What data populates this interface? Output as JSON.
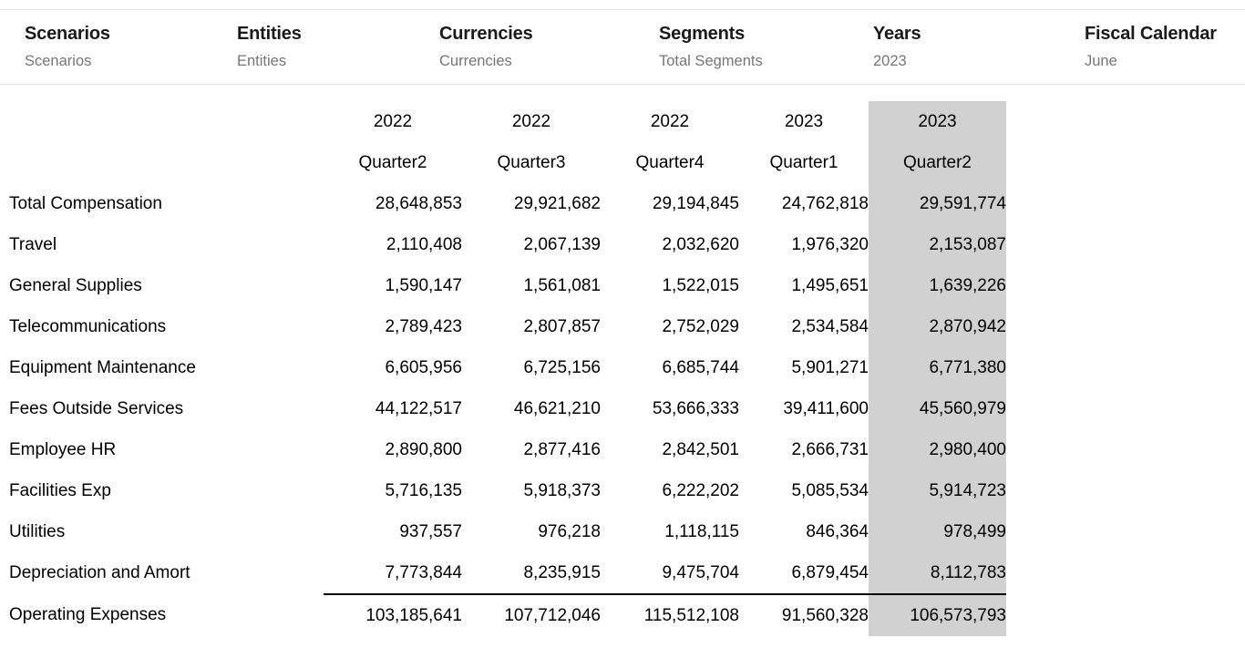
{
  "pov": {
    "items": [
      {
        "label": "Scenarios",
        "value": "Scenarios"
      },
      {
        "label": "Entities",
        "value": "Entities"
      },
      {
        "label": "Currencies",
        "value": "Currencies"
      },
      {
        "label": "Segments",
        "value": "Total Segments"
      },
      {
        "label": "Years",
        "value": "2023"
      },
      {
        "label": "Fiscal Calendar",
        "value": "June"
      }
    ]
  },
  "grid": {
    "columns": [
      {
        "year": "2022",
        "quarter": "Quarter2",
        "highlighted": false
      },
      {
        "year": "2022",
        "quarter": "Quarter3",
        "highlighted": false
      },
      {
        "year": "2022",
        "quarter": "Quarter4",
        "highlighted": false
      },
      {
        "year": "2023",
        "quarter": "Quarter1",
        "highlighted": false
      },
      {
        "year": "2023",
        "quarter": "Quarter2",
        "highlighted": true
      }
    ],
    "rows": [
      {
        "label": "Total Compensation",
        "values": [
          "28,648,853",
          "29,921,682",
          "29,194,845",
          "24,762,818",
          "29,591,774"
        ]
      },
      {
        "label": "Travel",
        "values": [
          "2,110,408",
          "2,067,139",
          "2,032,620",
          "1,976,320",
          "2,153,087"
        ]
      },
      {
        "label": "General Supplies",
        "values": [
          "1,590,147",
          "1,561,081",
          "1,522,015",
          "1,495,651",
          "1,639,226"
        ]
      },
      {
        "label": "Telecommunications",
        "values": [
          "2,789,423",
          "2,807,857",
          "2,752,029",
          "2,534,584",
          "2,870,942"
        ]
      },
      {
        "label": "Equipment Maintenance",
        "values": [
          "6,605,956",
          "6,725,156",
          "6,685,744",
          "5,901,271",
          "6,771,380"
        ]
      },
      {
        "label": "Fees Outside Services",
        "values": [
          "44,122,517",
          "46,621,210",
          "53,666,333",
          "39,411,600",
          "45,560,979"
        ]
      },
      {
        "label": "Employee HR",
        "values": [
          "2,890,800",
          "2,877,416",
          "2,842,501",
          "2,666,731",
          "2,980,400"
        ]
      },
      {
        "label": "Facilities Exp",
        "values": [
          "5,716,135",
          "5,918,373",
          "6,222,202",
          "5,085,534",
          "5,914,723"
        ]
      },
      {
        "label": "Utilities",
        "values": [
          "937,557",
          "976,218",
          "1,118,115",
          "846,364",
          "978,499"
        ]
      },
      {
        "label": "Depreciation and Amort",
        "values": [
          "7,773,844",
          "8,235,915",
          "9,475,704",
          "6,879,454",
          "8,112,783"
        ]
      },
      {
        "label": "Operating Expenses",
        "values": [
          "103,185,641",
          "107,712,046",
          "115,512,108",
          "91,560,328",
          "106,573,793"
        ],
        "is_total": true
      }
    ],
    "colors": {
      "column_highlight": "#d1d1d1",
      "total_rule": "#000000",
      "pov_value_text": "#767676"
    }
  }
}
